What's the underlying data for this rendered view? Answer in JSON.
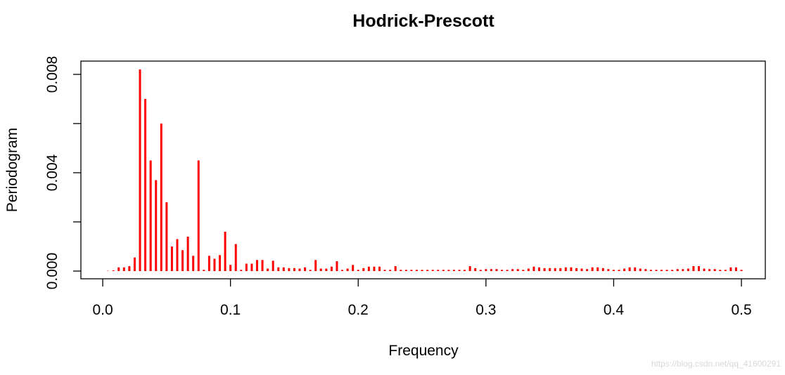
{
  "chart_data": {
    "type": "spike",
    "title": "Hodrick-Prescott",
    "xlabel": "Frequency",
    "ylabel": "Periodogram",
    "watermark": "https://blog.csdn.net/qq_41600291",
    "color": "#ff0000",
    "xlim": [
      -0.0171,
      0.5187
    ],
    "ylim": [
      -0.000314,
      0.00854
    ],
    "xticks": [
      {
        "value": 0,
        "label": "0.0"
      },
      0.1,
      0.2,
      0.3,
      0.4,
      0.5
    ],
    "yticks": [
      {
        "value": 0,
        "label": "0.000"
      },
      0.004,
      0.008
    ],
    "yminor_ticks": [
      0.002,
      0.006
    ],
    "x": [
      0.00417,
      0.00833,
      0.0125,
      0.01667,
      0.02083,
      0.025,
      0.02917,
      0.03333,
      0.0375,
      0.04167,
      0.04583,
      0.05,
      0.05417,
      0.05833,
      0.0625,
      0.06667,
      0.07083,
      0.075,
      0.07917,
      0.08333,
      0.0875,
      0.09167,
      0.09583,
      0.1,
      0.10417,
      0.10833,
      0.1125,
      0.11667,
      0.12083,
      0.125,
      0.12917,
      0.13333,
      0.1375,
      0.14167,
      0.14583,
      0.15,
      0.15417,
      0.15833,
      0.1625,
      0.16667,
      0.17083,
      0.175,
      0.17917,
      0.18333,
      0.1875,
      0.19167,
      0.19583,
      0.2,
      0.20417,
      0.20833,
      0.2125,
      0.21667,
      0.22083,
      0.225,
      0.22917,
      0.23333,
      0.2375,
      0.24167,
      0.24583,
      0.25,
      0.25417,
      0.25833,
      0.2625,
      0.26667,
      0.27083,
      0.275,
      0.27917,
      0.28333,
      0.2875,
      0.29167,
      0.29583,
      0.3,
      0.30417,
      0.30833,
      0.3125,
      0.31667,
      0.32083,
      0.325,
      0.32917,
      0.33333,
      0.3375,
      0.34167,
      0.34583,
      0.35,
      0.35417,
      0.35833,
      0.3625,
      0.36667,
      0.37083,
      0.375,
      0.37917,
      0.38333,
      0.3875,
      0.39167,
      0.39583,
      0.4,
      0.40417,
      0.40833,
      0.4125,
      0.41667,
      0.42083,
      0.425,
      0.42917,
      0.43333,
      0.4375,
      0.44167,
      0.44583,
      0.45,
      0.45417,
      0.45833,
      0.4625,
      0.46667,
      0.47083,
      0.475,
      0.47917,
      0.48333,
      0.4875,
      0.49167,
      0.49583,
      0.5
    ],
    "values": [
      1e-05,
      3e-05,
      0.00015,
      0.00015,
      0.0002,
      0.00055,
      0.0082,
      0.007,
      0.0045,
      0.0037,
      0.006,
      0.0028,
      0.001,
      0.0013,
      0.00085,
      0.0014,
      0.00062,
      0.0045,
      5e-05,
      0.00062,
      0.0005,
      0.00065,
      0.0016,
      0.00025,
      0.0011,
      5e-05,
      0.0003,
      0.0003,
      0.00045,
      0.00045,
      0.0001,
      0.00042,
      0.00015,
      0.00015,
      0.00012,
      0.00012,
      0.0001,
      0.00015,
      5e-05,
      0.00045,
      0.0001,
      0.0001,
      0.00018,
      0.0004,
      5e-05,
      0.0001,
      0.00025,
      5e-05,
      0.00012,
      0.00018,
      0.00018,
      0.00018,
      5e-05,
      5e-05,
      0.0002,
      5e-05,
      5e-05,
      5e-05,
      5e-05,
      5e-05,
      5e-05,
      5e-05,
      5e-05,
      5e-05,
      5e-05,
      5e-05,
      5e-05,
      5e-05,
      0.0002,
      0.00012,
      5e-05,
      8e-05,
      8e-05,
      8e-05,
      5e-05,
      5e-05,
      8e-05,
      8e-05,
      5e-05,
      0.0001,
      0.00018,
      0.00015,
      0.00012,
      0.00012,
      0.00012,
      0.00012,
      0.00015,
      0.00015,
      0.00012,
      0.0001,
      8e-05,
      0.00015,
      0.00015,
      0.00012,
      8e-05,
      5e-05,
      5e-05,
      0.0001,
      0.00015,
      0.00015,
      0.0001,
      8e-05,
      5e-05,
      5e-05,
      5e-05,
      5e-05,
      5e-05,
      8e-05,
      8e-05,
      0.0001,
      0.0002,
      0.0002,
      0.0001,
      8e-05,
      8e-05,
      5e-05,
      5e-05,
      0.00015,
      0.00015,
      5e-05
    ]
  }
}
